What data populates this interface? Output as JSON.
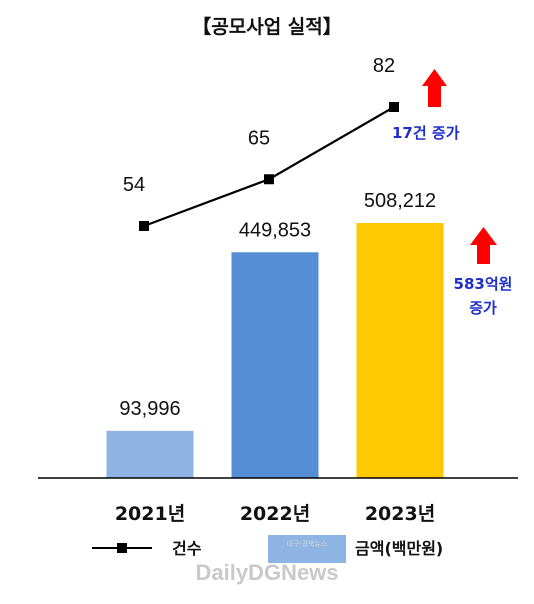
{
  "chart_data": {
    "type": "bar",
    "title": "【공모사업 실적】",
    "categories": [
      "2021년",
      "2022년",
      "2023년"
    ],
    "series": [
      {
        "name": "금액(백만원)",
        "type": "bar",
        "values": [
          93996,
          449853,
          508212
        ],
        "value_labels": [
          "93,996",
          "449,853",
          "508,212"
        ],
        "colors": [
          "#8eb4e3",
          "#558ed5",
          "#ffc800"
        ]
      },
      {
        "name": "건수",
        "type": "line",
        "values": [
          54,
          65,
          82
        ],
        "value_labels": [
          "54",
          "65",
          "82"
        ],
        "color": "#000000"
      }
    ],
    "annotations": [
      {
        "text": "17건 증가",
        "color": "#1f2fc9"
      },
      {
        "text_lines": [
          "583억원",
          "증가"
        ],
        "color": "#1f2fc9"
      }
    ],
    "legend": {
      "placement": "bottom",
      "items": [
        "건수",
        "금액(백만원)"
      ]
    },
    "grid": false
  },
  "watermark": {
    "text": "DailyDGNews",
    "subtext": "대구·경북뉴스"
  },
  "colors": {
    "arrow": "#ff0000",
    "annotation": "#1f2fc9",
    "line": "#000000",
    "axis": "#000000"
  }
}
